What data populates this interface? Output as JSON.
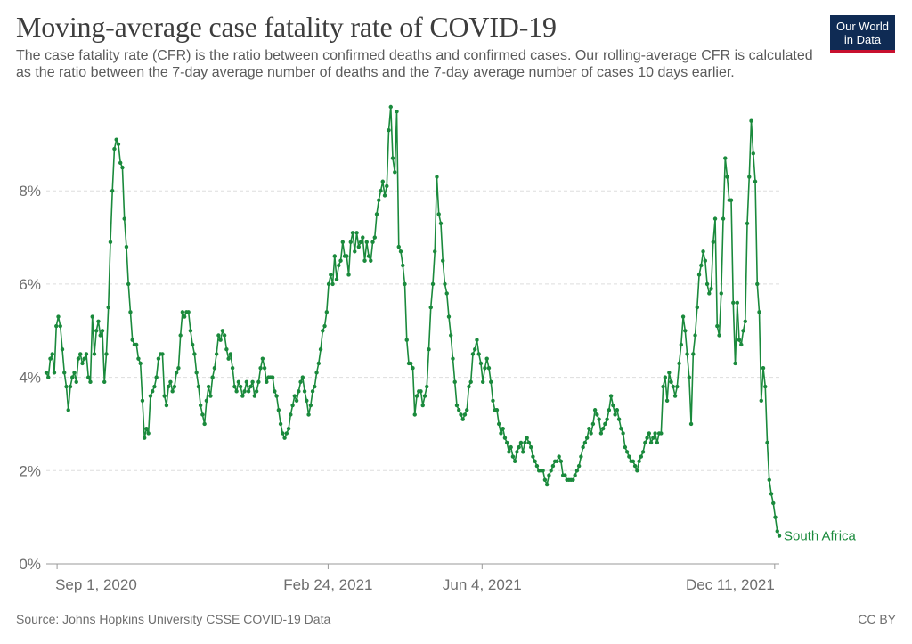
{
  "title": "Moving-average case fatality rate of COVID-19",
  "subtitle": "The case fatality rate (CFR) is the ratio between confirmed deaths and confirmed cases. Our rolling-average CFR is calculated as the ratio between the 7-day average number of deaths and the 7-day average number of cases 10 days earlier.",
  "logo": {
    "line1": "Our World",
    "line2": "in Data"
  },
  "source": "Source: Johns Hopkins University CSSE COVID-19 Data",
  "license": "CC BY",
  "chart_data": {
    "type": "line",
    "title": "Moving-average case fatality rate of COVID-19",
    "xlabel": "",
    "ylabel": "",
    "ylim": [
      0,
      9.8
    ],
    "yticks": [
      0,
      2,
      4,
      6,
      8
    ],
    "ytick_labels": [
      "0%",
      "2%",
      "4%",
      "6%",
      "8%"
    ],
    "xtick_labels": [
      "Sep 1, 2020",
      "Feb 24, 2021",
      "Jun 4, 2021",
      "Dec 11, 2021"
    ],
    "xtick_dates": [
      "2020-09-01",
      "2021-02-24",
      "2021-06-04",
      "2021-12-11"
    ],
    "grid": true,
    "color": "#1a8a3c",
    "series": [
      {
        "name": "South Africa",
        "values": [
          4.1,
          4.0,
          4.4,
          4.5,
          4.1,
          5.1,
          5.3,
          5.1,
          4.6,
          4.1,
          3.8,
          3.3,
          3.8,
          4.0,
          4.1,
          3.9,
          4.4,
          4.5,
          4.3,
          4.4,
          4.5,
          4.0,
          3.9,
          5.3,
          4.5,
          5.0,
          5.2,
          4.9,
          5.0,
          3.9,
          4.5,
          5.5,
          6.9,
          8.0,
          8.9,
          9.1,
          9.0,
          8.6,
          8.5,
          7.4,
          6.8,
          6.0,
          5.4,
          4.8,
          4.7,
          4.7,
          4.4,
          4.3,
          3.5,
          2.7,
          2.9,
          2.8,
          3.6,
          3.7,
          3.8,
          4.0,
          4.4,
          4.5,
          4.5,
          3.6,
          3.4,
          3.8,
          3.9,
          3.7,
          3.8,
          4.1,
          4.2,
          4.9,
          5.4,
          5.3,
          5.4,
          5.4,
          5.0,
          4.7,
          4.5,
          4.1,
          3.8,
          3.4,
          3.2,
          3.0,
          3.5,
          3.8,
          3.6,
          4.0,
          4.2,
          4.5,
          4.9,
          4.8,
          5.0,
          4.9,
          4.6,
          4.4,
          4.5,
          4.2,
          3.8,
          3.7,
          3.9,
          3.8,
          3.6,
          3.7,
          3.9,
          3.7,
          3.8,
          3.9,
          3.6,
          3.7,
          3.9,
          4.2,
          4.4,
          4.2,
          3.9,
          4.0,
          4.0,
          4.0,
          3.7,
          3.6,
          3.3,
          3.0,
          2.8,
          2.7,
          2.8,
          2.9,
          3.2,
          3.4,
          3.6,
          3.5,
          3.7,
          3.9,
          4.0,
          3.7,
          3.5,
          3.2,
          3.4,
          3.7,
          3.8,
          4.1,
          4.3,
          4.6,
          5.0,
          5.1,
          5.4,
          6.0,
          6.2,
          6.0,
          6.6,
          6.1,
          6.4,
          6.5,
          6.9,
          6.6,
          6.6,
          6.2,
          6.9,
          7.1,
          6.7,
          7.1,
          6.8,
          6.9,
          7.0,
          6.5,
          6.9,
          6.6,
          6.5,
          6.9,
          7.0,
          7.5,
          7.8,
          8.0,
          8.2,
          7.9,
          8.1,
          9.3,
          9.8,
          8.7,
          8.4,
          9.7,
          6.8,
          6.7,
          6.4,
          6.0,
          4.8,
          4.3,
          4.3,
          4.2,
          3.2,
          3.6,
          3.7,
          3.7,
          3.4,
          3.6,
          3.8,
          4.6,
          5.5,
          6.0,
          6.7,
          8.3,
          7.5,
          7.3,
          6.5,
          6.0,
          5.8,
          5.3,
          4.9,
          4.4,
          3.9,
          3.4,
          3.3,
          3.2,
          3.1,
          3.2,
          3.3,
          3.8,
          3.9,
          4.5,
          4.6,
          4.8,
          4.5,
          4.3,
          3.9,
          4.2,
          4.4,
          4.2,
          3.9,
          3.5,
          3.3,
          3.3,
          3.0,
          2.8,
          2.9,
          2.7,
          2.6,
          2.4,
          2.5,
          2.3,
          2.2,
          2.4,
          2.5,
          2.6,
          2.4,
          2.6,
          2.7,
          2.6,
          2.5,
          2.3,
          2.2,
          2.1,
          2.0,
          2.0,
          2.0,
          1.8,
          1.7,
          1.9,
          2.0,
          2.1,
          2.2,
          2.2,
          2.3,
          2.2,
          1.9,
          1.9,
          1.8,
          1.8,
          1.8,
          1.8,
          1.9,
          2.0,
          2.1,
          2.3,
          2.5,
          2.6,
          2.7,
          2.9,
          2.8,
          3.0,
          3.3,
          3.2,
          3.1,
          2.8,
          2.9,
          3.0,
          3.1,
          3.3,
          3.6,
          3.4,
          3.2,
          3.3,
          3.1,
          2.9,
          2.8,
          2.5,
          2.4,
          2.3,
          2.2,
          2.2,
          2.1,
          2.0,
          2.2,
          2.3,
          2.4,
          2.6,
          2.7,
          2.8,
          2.6,
          2.7,
          2.8,
          2.6,
          2.8,
          2.8,
          3.8,
          4.0,
          3.5,
          4.1,
          3.9,
          3.8,
          3.6,
          3.8,
          4.3,
          4.7,
          5.3,
          5.0,
          4.5,
          4.0,
          3.0,
          4.5,
          4.9,
          5.5,
          6.2,
          6.4,
          6.7,
          6.5,
          6.0,
          5.8,
          5.9,
          6.9,
          7.4,
          5.1,
          4.9,
          5.8,
          7.4,
          8.7,
          8.3,
          7.8,
          7.8,
          5.6,
          4.3,
          5.6,
          4.8,
          4.7,
          5.0,
          5.2,
          7.3,
          8.3,
          9.5,
          8.8,
          8.2,
          6.0,
          5.4,
          3.5,
          4.2,
          3.8,
          2.6,
          1.8,
          1.5,
          1.3,
          1.0,
          0.7,
          0.6
        ]
      }
    ]
  }
}
